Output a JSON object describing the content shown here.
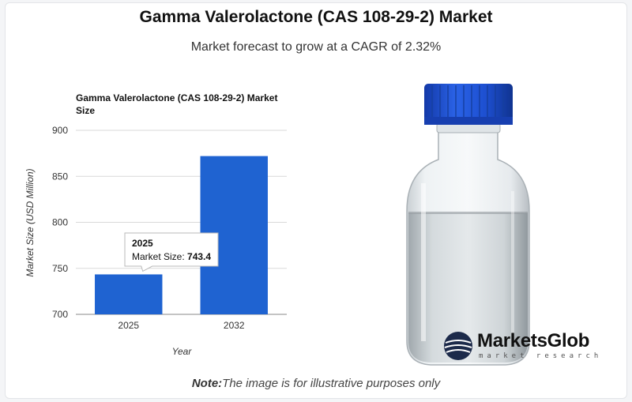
{
  "header": {
    "title": "Gamma Valerolactone (CAS 108-29-2) Market",
    "subtitle": "Market forecast to grow at a CAGR of 2.32%"
  },
  "chart_data": {
    "type": "bar",
    "title_lines": [
      "Gamma Valerolactone (CAS 108-29-2) Market",
      "Size"
    ],
    "categories": [
      "2025",
      "2032"
    ],
    "values": [
      743.4,
      872
    ],
    "xlabel": "Year",
    "ylabel": "Market Size (USD Million)",
    "ylim": [
      700,
      900
    ],
    "yticks": [
      700,
      750,
      800,
      850,
      900
    ],
    "grid": true,
    "bar_color": "#1f63d1",
    "tooltip": {
      "category": "2025",
      "label": "Market Size:",
      "value": "743.4"
    }
  },
  "image": {
    "brand_name": "MarketsGlob",
    "brand_tagline": "market research",
    "cap_color": "#1d4fd0"
  },
  "footer": {
    "note_label": "Note:",
    "note_text": "The image is for illustrative purposes only"
  }
}
